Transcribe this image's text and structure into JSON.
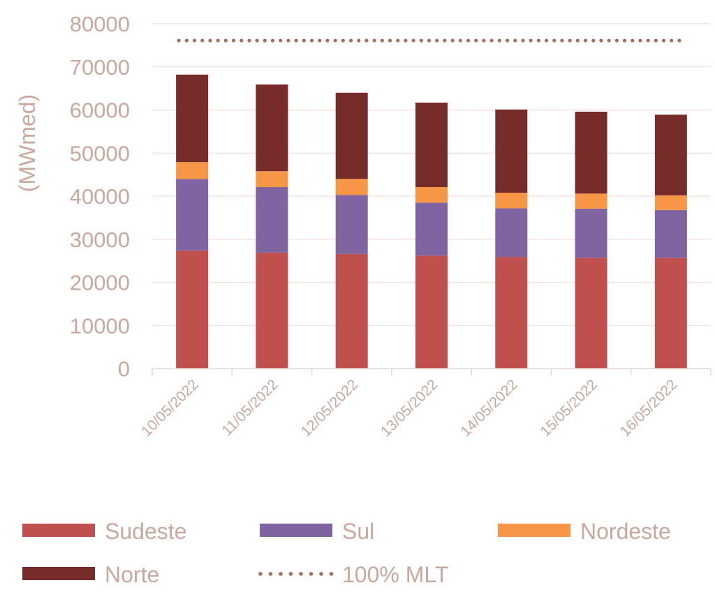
{
  "chart_data": {
    "type": "bar",
    "stacked": true,
    "title": "",
    "xlabel": "",
    "ylabel": "(MWmed)",
    "ylim": [
      0,
      80000
    ],
    "yticks": [
      "0",
      "10000",
      "20000",
      "30000",
      "40000",
      "50000",
      "60000",
      "70000",
      "80000"
    ],
    "grid": true,
    "legend_position": "bottom",
    "categories": [
      "10/05/2022",
      "11/05/2022",
      "12/05/2022",
      "13/05/2022",
      "14/05/2022",
      "15/05/2022",
      "16/05/2022"
    ],
    "series": [
      {
        "name": "Sudeste",
        "color": "#c0504d",
        "values": [
          27400,
          26900,
          26600,
          26200,
          25900,
          25700,
          25700
        ]
      },
      {
        "name": "Sul",
        "color": "#8064a2",
        "values": [
          16600,
          15200,
          13700,
          12300,
          11300,
          11400,
          11100
        ]
      },
      {
        "name": "Nordeste",
        "color": "#f79646",
        "values": [
          3900,
          3700,
          3700,
          3600,
          3600,
          3500,
          3400
        ]
      },
      {
        "name": "Norte",
        "color": "#772c2a",
        "values": [
          20300,
          20100,
          20000,
          19600,
          19300,
          19000,
          18700
        ]
      }
    ],
    "reference_line": {
      "name": "100% MLT",
      "color": "#a66e5e",
      "value": 76100
    }
  }
}
